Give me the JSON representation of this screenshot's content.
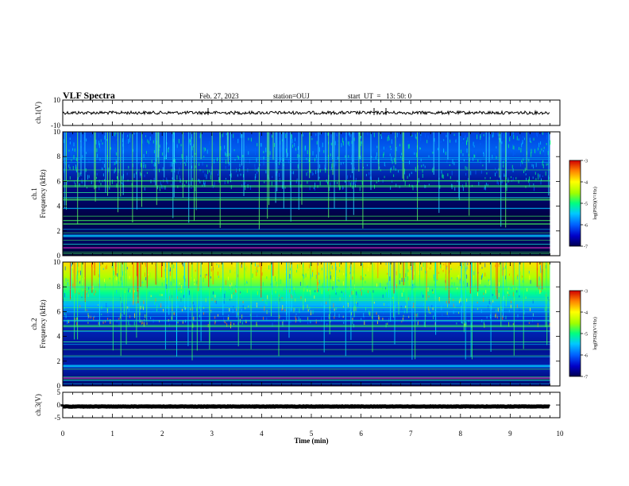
{
  "header": {
    "title": "VLF Spectra",
    "date": "Feb. 27, 2023",
    "station": "station=OUJ",
    "start": "start  UT  =   13: 50: 0"
  },
  "colors": {
    "colormap": [
      "#000050",
      "#0000c8",
      "#0060ff",
      "#00c8ff",
      "#00ff80",
      "#a0ff00",
      "#ffff00",
      "#ff8000",
      "#d00000"
    ],
    "trace": "#000000"
  },
  "chart_data": [
    {
      "type": "line",
      "ylabel": "ch.1(V)",
      "ylim": [
        -10,
        10
      ],
      "yticks": [
        "10",
        "-10"
      ],
      "xlim": [
        0,
        10
      ],
      "description_value": "noisy trace near 0 V",
      "series": [
        {
          "x": [
            0,
            9.8
          ],
          "y": [
            0,
            0
          ]
        }
      ]
    },
    {
      "type": "heatmap",
      "ylabel": "ch.1\nFrequency (kHz)",
      "ylim": [
        0,
        10
      ],
      "yticks": [
        "0",
        "2",
        "4",
        "6",
        "8",
        "10"
      ],
      "xlim": [
        0,
        10
      ],
      "data_end_min": 9.8,
      "colorbar": {
        "label": "log(PSD)(V²/Hz)",
        "range": [
          -7,
          -3
        ],
        "ticks": [
          "-3",
          "-4",
          "-5",
          "-6",
          "-7"
        ]
      }
    },
    {
      "type": "heatmap",
      "ylabel": "ch.2\nFrequency (kHz)",
      "ylim": [
        0,
        10
      ],
      "yticks": [
        "0",
        "2",
        "4",
        "6",
        "8",
        "10"
      ],
      "xlim": [
        0,
        10
      ],
      "data_end_min": 9.8,
      "colorbar": {
        "label": "log(PSD)(V²/Hz)",
        "range": [
          -7,
          -3
        ],
        "ticks": [
          "-3",
          "-4",
          "-5",
          "-6",
          "-7"
        ]
      }
    },
    {
      "type": "line",
      "ylabel": "ch.3(V)",
      "ylim": [
        -5,
        5
      ],
      "yticks": [
        "5",
        "0",
        "-5"
      ],
      "xlim": [
        0,
        10
      ],
      "series": [
        {
          "x": [
            0,
            9.8
          ],
          "y": [
            -0.6,
            -0.6
          ]
        }
      ]
    }
  ],
  "xaxis": {
    "label": "Time (min)",
    "ticks": [
      "0",
      "1",
      "2",
      "3",
      "4",
      "5",
      "6",
      "7",
      "8",
      "9",
      "10"
    ]
  }
}
